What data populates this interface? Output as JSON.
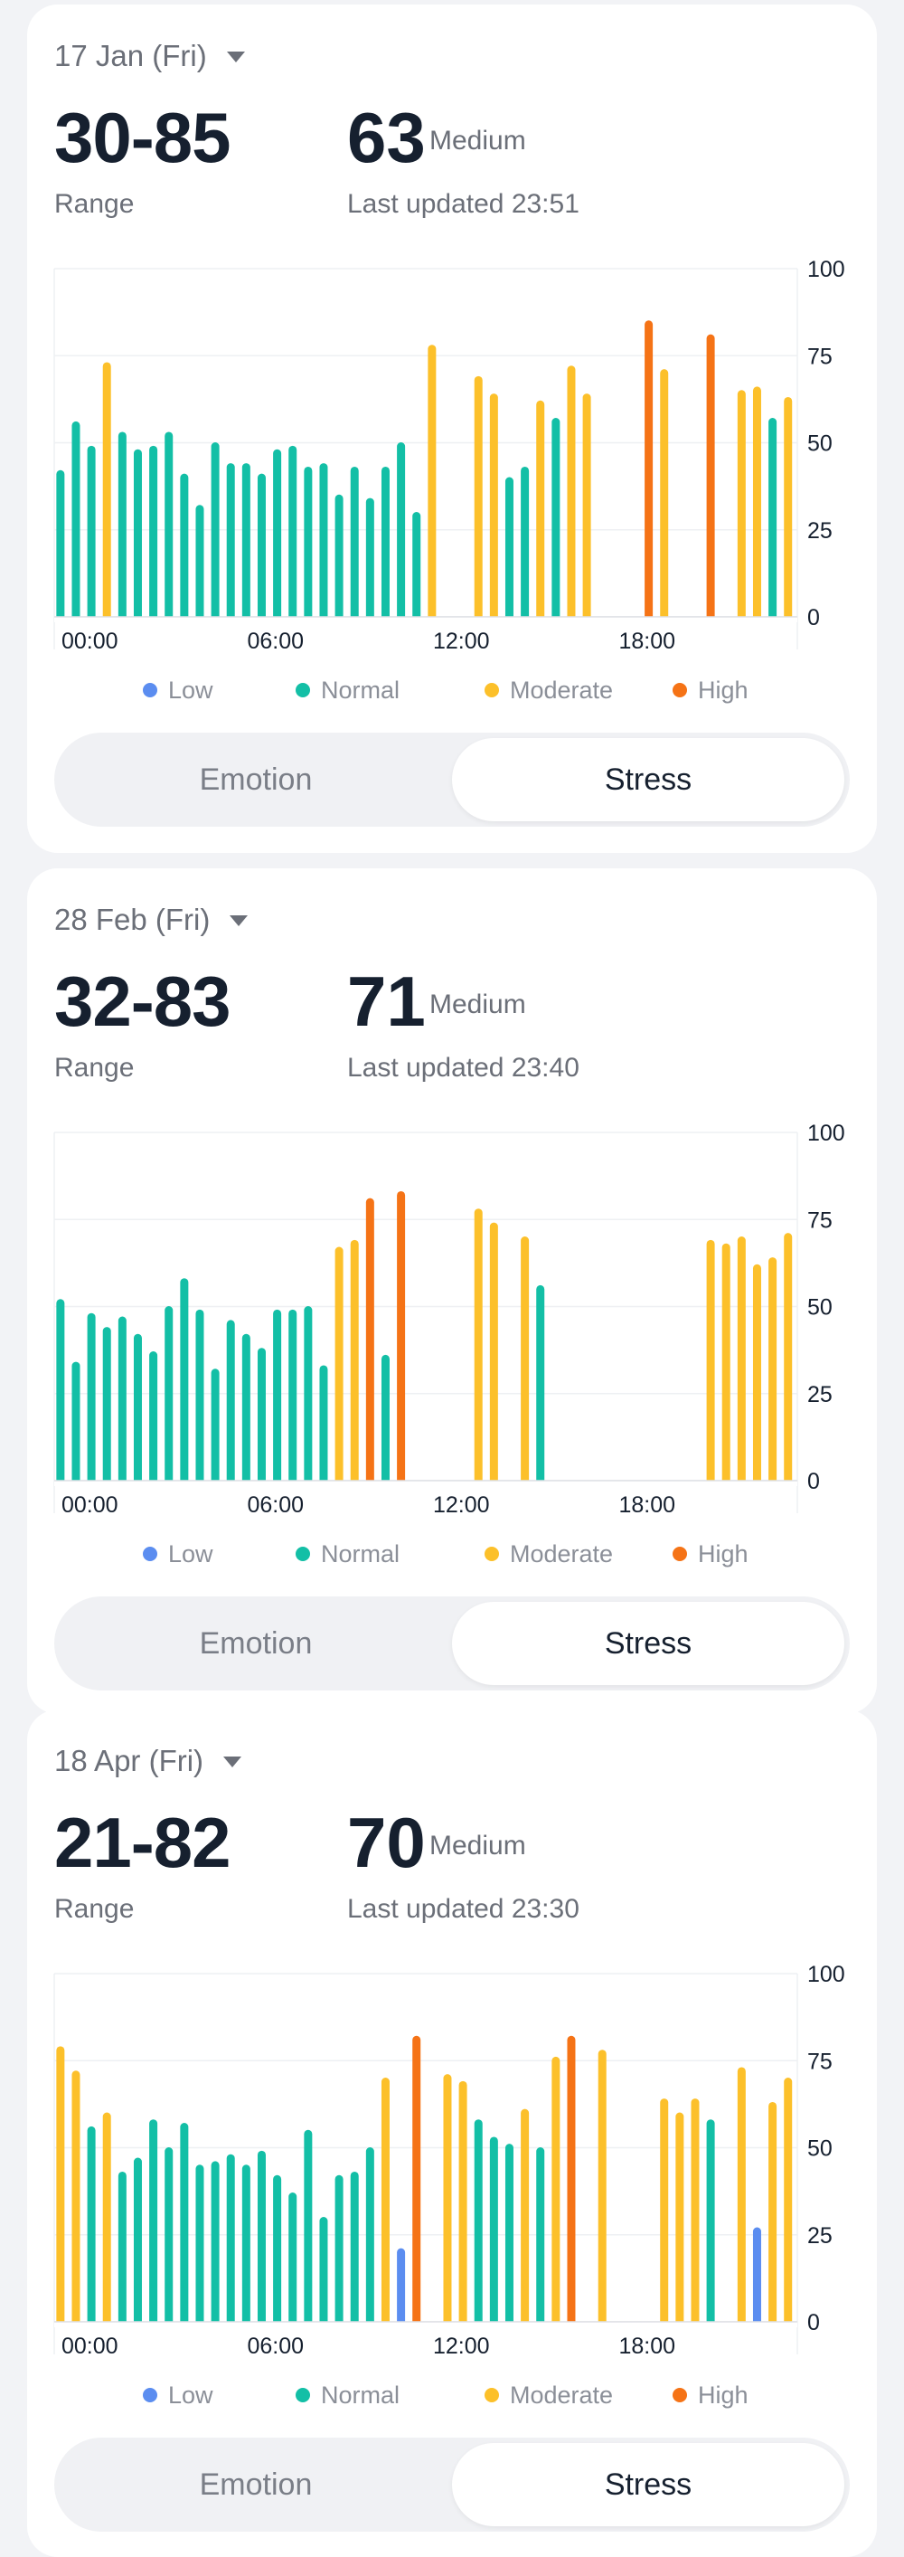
{
  "legend": [
    {
      "label": "Low",
      "color": "#5b8df0"
    },
    {
      "label": "Normal",
      "color": "#13bfa6"
    },
    {
      "label": "Moderate",
      "color": "#fcc02a"
    },
    {
      "label": "High",
      "color": "#f57316"
    }
  ],
  "cards": [
    {
      "date": "17 Jan (Fri)",
      "range": "30-85",
      "range_label": "Range",
      "current": "63",
      "level": "Medium",
      "updated": "Last updated 23:51",
      "tabs": [
        "Emotion",
        "Stress"
      ],
      "selected_tab": "Stress"
    },
    {
      "date": "28 Feb (Fri)",
      "range": "32-83",
      "range_label": "Range",
      "current": "71",
      "level": "Medium",
      "updated": "Last updated 23:40",
      "tabs": [
        "Emotion",
        "Stress"
      ],
      "selected_tab": "Stress"
    },
    {
      "date": "18 Apr (Fri)",
      "range": "21-82",
      "range_label": "Range",
      "current": "70",
      "level": "Medium",
      "updated": "Last updated 23:30",
      "tabs": [
        "Emotion",
        "Stress"
      ],
      "selected_tab": "Stress"
    }
  ],
  "chart_data": [
    {
      "type": "bar",
      "x_unit": "hour",
      "x_ticks": [
        "00:00",
        "06:00",
        "12:00",
        "18:00"
      ],
      "x_tick_values": [
        0,
        6,
        12,
        18
      ],
      "xlim": [
        0,
        24
      ],
      "ylim": [
        0,
        100
      ],
      "y_ticks": [
        0,
        25,
        50,
        75,
        100
      ],
      "grid": true,
      "legend_position": "bottom",
      "bars": [
        {
          "x": 0.2,
          "v": 42,
          "level": "Normal"
        },
        {
          "x": 0.7,
          "v": 56,
          "level": "Normal"
        },
        {
          "x": 1.2,
          "v": 49,
          "level": "Normal"
        },
        {
          "x": 1.7,
          "v": 73,
          "level": "Moderate"
        },
        {
          "x": 2.2,
          "v": 53,
          "level": "Normal"
        },
        {
          "x": 2.7,
          "v": 48,
          "level": "Normal"
        },
        {
          "x": 3.2,
          "v": 49,
          "level": "Normal"
        },
        {
          "x": 3.7,
          "v": 53,
          "level": "Normal"
        },
        {
          "x": 4.2,
          "v": 41,
          "level": "Normal"
        },
        {
          "x": 4.7,
          "v": 32,
          "level": "Normal"
        },
        {
          "x": 5.2,
          "v": 50,
          "level": "Normal"
        },
        {
          "x": 5.7,
          "v": 44,
          "level": "Normal"
        },
        {
          "x": 6.2,
          "v": 44,
          "level": "Normal"
        },
        {
          "x": 6.7,
          "v": 41,
          "level": "Normal"
        },
        {
          "x": 7.2,
          "v": 48,
          "level": "Normal"
        },
        {
          "x": 7.7,
          "v": 49,
          "level": "Normal"
        },
        {
          "x": 8.2,
          "v": 43,
          "level": "Normal"
        },
        {
          "x": 8.7,
          "v": 44,
          "level": "Normal"
        },
        {
          "x": 9.2,
          "v": 35,
          "level": "Normal"
        },
        {
          "x": 9.7,
          "v": 43,
          "level": "Normal"
        },
        {
          "x": 10.2,
          "v": 34,
          "level": "Normal"
        },
        {
          "x": 10.7,
          "v": 43,
          "level": "Normal"
        },
        {
          "x": 11.2,
          "v": 50,
          "level": "Normal"
        },
        {
          "x": 11.7,
          "v": 30,
          "level": "Normal"
        },
        {
          "x": 12.2,
          "v": 78,
          "level": "Moderate"
        },
        {
          "x": 13.7,
          "v": 69,
          "level": "Moderate"
        },
        {
          "x": 14.2,
          "v": 64,
          "level": "Moderate"
        },
        {
          "x": 14.7,
          "v": 40,
          "level": "Normal"
        },
        {
          "x": 15.2,
          "v": 43,
          "level": "Normal"
        },
        {
          "x": 15.7,
          "v": 62,
          "level": "Moderate"
        },
        {
          "x": 16.2,
          "v": 57,
          "level": "Normal"
        },
        {
          "x": 16.7,
          "v": 72,
          "level": "Moderate"
        },
        {
          "x": 17.2,
          "v": 64,
          "level": "Moderate"
        },
        {
          "x": 19.2,
          "v": 85,
          "level": "High"
        },
        {
          "x": 19.7,
          "v": 71,
          "level": "Moderate"
        },
        {
          "x": 21.2,
          "v": 81,
          "level": "High"
        },
        {
          "x": 22.2,
          "v": 65,
          "level": "Moderate"
        },
        {
          "x": 22.7,
          "v": 66,
          "level": "Moderate"
        },
        {
          "x": 23.2,
          "v": 57,
          "level": "Normal"
        },
        {
          "x": 23.7,
          "v": 63,
          "level": "Moderate"
        }
      ]
    },
    {
      "type": "bar",
      "x_unit": "hour",
      "x_ticks": [
        "00:00",
        "06:00",
        "12:00",
        "18:00"
      ],
      "x_tick_values": [
        0,
        6,
        12,
        18
      ],
      "xlim": [
        0,
        24
      ],
      "ylim": [
        0,
        100
      ],
      "y_ticks": [
        0,
        25,
        50,
        75,
        100
      ],
      "grid": true,
      "legend_position": "bottom",
      "bars": [
        {
          "x": 0.2,
          "v": 52,
          "level": "Normal"
        },
        {
          "x": 0.7,
          "v": 34,
          "level": "Normal"
        },
        {
          "x": 1.2,
          "v": 48,
          "level": "Normal"
        },
        {
          "x": 1.7,
          "v": 44,
          "level": "Normal"
        },
        {
          "x": 2.2,
          "v": 47,
          "level": "Normal"
        },
        {
          "x": 2.7,
          "v": 42,
          "level": "Normal"
        },
        {
          "x": 3.2,
          "v": 37,
          "level": "Normal"
        },
        {
          "x": 3.7,
          "v": 50,
          "level": "Normal"
        },
        {
          "x": 4.2,
          "v": 58,
          "level": "Normal"
        },
        {
          "x": 4.7,
          "v": 49,
          "level": "Normal"
        },
        {
          "x": 5.2,
          "v": 32,
          "level": "Normal"
        },
        {
          "x": 5.7,
          "v": 46,
          "level": "Normal"
        },
        {
          "x": 6.2,
          "v": 42,
          "level": "Normal"
        },
        {
          "x": 6.7,
          "v": 38,
          "level": "Normal"
        },
        {
          "x": 7.2,
          "v": 49,
          "level": "Normal"
        },
        {
          "x": 7.7,
          "v": 49,
          "level": "Normal"
        },
        {
          "x": 8.2,
          "v": 50,
          "level": "Normal"
        },
        {
          "x": 8.7,
          "v": 33,
          "level": "Normal"
        },
        {
          "x": 9.2,
          "v": 67,
          "level": "Moderate"
        },
        {
          "x": 9.7,
          "v": 69,
          "level": "Moderate"
        },
        {
          "x": 10.2,
          "v": 81,
          "level": "High"
        },
        {
          "x": 10.7,
          "v": 36,
          "level": "Normal"
        },
        {
          "x": 11.2,
          "v": 83,
          "level": "High"
        },
        {
          "x": 13.7,
          "v": 78,
          "level": "Moderate"
        },
        {
          "x": 14.2,
          "v": 74,
          "level": "Moderate"
        },
        {
          "x": 15.2,
          "v": 70,
          "level": "Moderate"
        },
        {
          "x": 15.7,
          "v": 56,
          "level": "Normal"
        },
        {
          "x": 21.2,
          "v": 69,
          "level": "Moderate"
        },
        {
          "x": 21.7,
          "v": 68,
          "level": "Moderate"
        },
        {
          "x": 22.2,
          "v": 70,
          "level": "Moderate"
        },
        {
          "x": 22.7,
          "v": 62,
          "level": "Moderate"
        },
        {
          "x": 23.2,
          "v": 64,
          "level": "Moderate"
        },
        {
          "x": 23.7,
          "v": 71,
          "level": "Moderate"
        }
      ]
    },
    {
      "type": "bar",
      "x_unit": "hour",
      "x_ticks": [
        "00:00",
        "06:00",
        "12:00",
        "18:00"
      ],
      "x_tick_values": [
        0,
        6,
        12,
        18
      ],
      "xlim": [
        0,
        24
      ],
      "ylim": [
        0,
        100
      ],
      "y_ticks": [
        0,
        25,
        50,
        75,
        100
      ],
      "grid": true,
      "legend_position": "bottom",
      "bars": [
        {
          "x": 0.2,
          "v": 79,
          "level": "Moderate"
        },
        {
          "x": 0.7,
          "v": 72,
          "level": "Moderate"
        },
        {
          "x": 1.2,
          "v": 56,
          "level": "Normal"
        },
        {
          "x": 1.7,
          "v": 60,
          "level": "Moderate"
        },
        {
          "x": 2.2,
          "v": 43,
          "level": "Normal"
        },
        {
          "x": 2.7,
          "v": 47,
          "level": "Normal"
        },
        {
          "x": 3.2,
          "v": 58,
          "level": "Normal"
        },
        {
          "x": 3.7,
          "v": 50,
          "level": "Normal"
        },
        {
          "x": 4.2,
          "v": 57,
          "level": "Normal"
        },
        {
          "x": 4.7,
          "v": 45,
          "level": "Normal"
        },
        {
          "x": 5.2,
          "v": 46,
          "level": "Normal"
        },
        {
          "x": 5.7,
          "v": 48,
          "level": "Normal"
        },
        {
          "x": 6.2,
          "v": 45,
          "level": "Normal"
        },
        {
          "x": 6.7,
          "v": 49,
          "level": "Normal"
        },
        {
          "x": 7.2,
          "v": 42,
          "level": "Normal"
        },
        {
          "x": 7.7,
          "v": 37,
          "level": "Normal"
        },
        {
          "x": 8.2,
          "v": 55,
          "level": "Normal"
        },
        {
          "x": 8.7,
          "v": 30,
          "level": "Normal"
        },
        {
          "x": 9.2,
          "v": 42,
          "level": "Normal"
        },
        {
          "x": 9.7,
          "v": 43,
          "level": "Normal"
        },
        {
          "x": 10.2,
          "v": 50,
          "level": "Normal"
        },
        {
          "x": 10.7,
          "v": 70,
          "level": "Moderate"
        },
        {
          "x": 11.2,
          "v": 21,
          "level": "Low"
        },
        {
          "x": 11.7,
          "v": 82,
          "level": "High"
        },
        {
          "x": 12.7,
          "v": 71,
          "level": "Moderate"
        },
        {
          "x": 13.2,
          "v": 69,
          "level": "Moderate"
        },
        {
          "x": 13.7,
          "v": 58,
          "level": "Normal"
        },
        {
          "x": 14.2,
          "v": 53,
          "level": "Normal"
        },
        {
          "x": 14.7,
          "v": 51,
          "level": "Normal"
        },
        {
          "x": 15.2,
          "v": 61,
          "level": "Moderate"
        },
        {
          "x": 15.7,
          "v": 50,
          "level": "Normal"
        },
        {
          "x": 16.2,
          "v": 76,
          "level": "Moderate"
        },
        {
          "x": 16.7,
          "v": 82,
          "level": "High"
        },
        {
          "x": 17.7,
          "v": 78,
          "level": "Moderate"
        },
        {
          "x": 19.7,
          "v": 64,
          "level": "Moderate"
        },
        {
          "x": 20.2,
          "v": 60,
          "level": "Moderate"
        },
        {
          "x": 20.7,
          "v": 64,
          "level": "Moderate"
        },
        {
          "x": 21.2,
          "v": 58,
          "level": "Normal"
        },
        {
          "x": 22.2,
          "v": 73,
          "level": "Moderate"
        },
        {
          "x": 22.7,
          "v": 27,
          "level": "Low"
        },
        {
          "x": 23.2,
          "v": 63,
          "level": "Moderate"
        },
        {
          "x": 23.7,
          "v": 70,
          "level": "Moderate"
        }
      ]
    }
  ]
}
